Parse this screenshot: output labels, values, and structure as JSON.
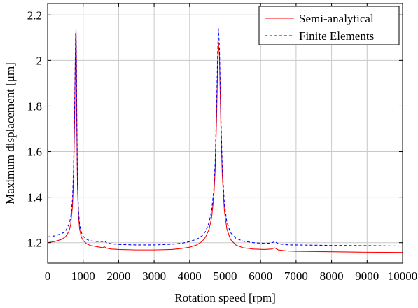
{
  "chart_data": {
    "type": "line",
    "xlabel": "Rotation speed [rpm]",
    "ylabel": "Maximum displacement [μm]",
    "xlim": [
      0,
      10000
    ],
    "ylim": [
      1.11,
      2.25
    ],
    "xticks": [
      0,
      1000,
      2000,
      3000,
      4000,
      5000,
      6000,
      7000,
      8000,
      9000,
      10000
    ],
    "yticks": [
      1.2,
      1.4,
      1.6,
      1.8,
      2.0,
      2.2
    ],
    "ytick_labels": [
      "1.2",
      "1.4",
      "1.6",
      "1.8",
      "2",
      "2.2"
    ],
    "grid": true,
    "legend_position": "top-right",
    "series": [
      {
        "name": "Semi-analytical",
        "color": "#ff0000",
        "dash": "solid",
        "x": [
          0,
          200,
          400,
          500,
          600,
          650,
          700,
          730,
          760,
          780,
          790,
          800,
          810,
          820,
          840,
          870,
          900,
          950,
          1000,
          1100,
          1200,
          1400,
          1550,
          1600,
          1650,
          1800,
          2000,
          2500,
          3000,
          3500,
          3800,
          4000,
          4200,
          4350,
          4450,
          4550,
          4620,
          4680,
          4720,
          4760,
          4790,
          4810,
          4840,
          4880,
          4920,
          4980,
          5050,
          5150,
          5300,
          5500,
          5800,
          6100,
          6300,
          6400,
          6500,
          6800,
          7000,
          8000,
          9000,
          10000
        ],
        "values": [
          1.2,
          1.205,
          1.215,
          1.225,
          1.25,
          1.28,
          1.36,
          1.48,
          1.75,
          2.0,
          2.12,
          2.12,
          2.0,
          1.75,
          1.45,
          1.32,
          1.26,
          1.225,
          1.21,
          1.195,
          1.188,
          1.182,
          1.178,
          1.182,
          1.176,
          1.172,
          1.17,
          1.168,
          1.168,
          1.17,
          1.175,
          1.18,
          1.19,
          1.205,
          1.225,
          1.26,
          1.31,
          1.4,
          1.52,
          1.75,
          1.98,
          2.08,
          2.02,
          1.72,
          1.5,
          1.34,
          1.26,
          1.215,
          1.19,
          1.178,
          1.172,
          1.17,
          1.172,
          1.177,
          1.168,
          1.163,
          1.162,
          1.16,
          1.158,
          1.157
        ]
      },
      {
        "name": "Finite Elements",
        "color": "#0000ff",
        "dash": "dashed",
        "x": [
          0,
          200,
          400,
          500,
          600,
          650,
          700,
          730,
          760,
          780,
          790,
          800,
          810,
          820,
          840,
          870,
          900,
          950,
          1000,
          1100,
          1200,
          1400,
          1550,
          1600,
          1650,
          1800,
          2000,
          2500,
          3000,
          3500,
          3800,
          4000,
          4200,
          4350,
          4450,
          4550,
          4620,
          4680,
          4720,
          4760,
          4790,
          4810,
          4840,
          4880,
          4920,
          4980,
          5050,
          5150,
          5300,
          5500,
          5800,
          6100,
          6300,
          6400,
          6500,
          6800,
          7000,
          8000,
          9000,
          10000
        ],
        "values": [
          1.225,
          1.23,
          1.24,
          1.25,
          1.28,
          1.31,
          1.39,
          1.52,
          1.78,
          2.02,
          2.13,
          2.13,
          2.02,
          1.78,
          1.47,
          1.34,
          1.28,
          1.245,
          1.228,
          1.215,
          1.208,
          1.205,
          1.205,
          1.21,
          1.2,
          1.195,
          1.192,
          1.19,
          1.19,
          1.193,
          1.198,
          1.205,
          1.215,
          1.23,
          1.25,
          1.29,
          1.34,
          1.43,
          1.55,
          1.8,
          2.03,
          2.14,
          2.06,
          1.76,
          1.53,
          1.37,
          1.29,
          1.245,
          1.22,
          1.207,
          1.2,
          1.197,
          1.198,
          1.205,
          1.195,
          1.19,
          1.19,
          1.188,
          1.187,
          1.185
        ]
      }
    ]
  }
}
